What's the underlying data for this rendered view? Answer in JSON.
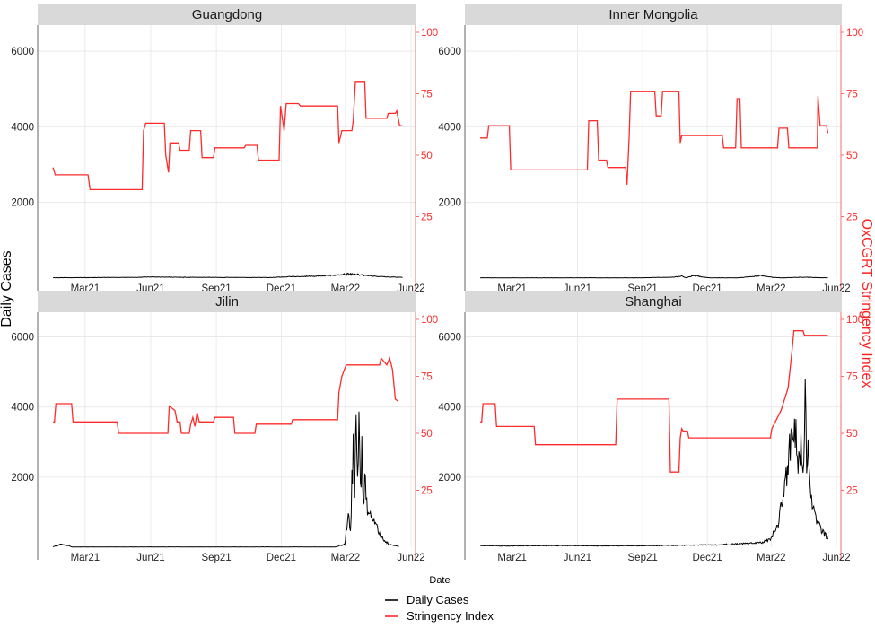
{
  "chart_data": {
    "type": "line",
    "ylabel_left": "Daily Cases",
    "ylabel_right": "OxCGRT Stringency Index",
    "xlabel": "Date",
    "x_ticks": [
      "Mar21",
      "Jun21",
      "Sep21",
      "Dec21",
      "Mar22",
      "Jun22"
    ],
    "x_tick_dates": [
      "2021-03-01",
      "2021-06-01",
      "2021-09-01",
      "2021-12-01",
      "2022-03-01",
      "2022-06-01"
    ],
    "xlim": [
      "2021-01-01",
      "2022-06-01"
    ],
    "y_left_ticks": [
      2000,
      4000,
      6000
    ],
    "y_left_lim": [
      0,
      6500
    ],
    "y_right_ticks": [
      25,
      50,
      75,
      100
    ],
    "y_right_lim": [
      0,
      100
    ],
    "grid": true,
    "legend": {
      "placement": "bottom",
      "entries": [
        {
          "label": "Daily Cases",
          "color": "#000000"
        },
        {
          "label": "Stringency Index",
          "color": "#ff2a2a"
        }
      ]
    },
    "colors": {
      "cases": "#000000",
      "stringency": "#ff2a2a",
      "strip": "#d9d9d9"
    },
    "panels": [
      {
        "title": "Guangdong",
        "stringency": [
          [
            "2021-01-15",
            45
          ],
          [
            "2021-01-18",
            42
          ],
          [
            "2021-03-05",
            42
          ],
          [
            "2021-03-08",
            36
          ],
          [
            "2021-05-20",
            36
          ],
          [
            "2021-05-22",
            60
          ],
          [
            "2021-05-25",
            63
          ],
          [
            "2021-06-20",
            63
          ],
          [
            "2021-06-22",
            50
          ],
          [
            "2021-06-26",
            43
          ],
          [
            "2021-06-28",
            55
          ],
          [
            "2021-07-10",
            55
          ],
          [
            "2021-07-12",
            52
          ],
          [
            "2021-07-25",
            52
          ],
          [
            "2021-07-27",
            60
          ],
          [
            "2021-08-10",
            60
          ],
          [
            "2021-08-12",
            49
          ],
          [
            "2021-08-28",
            49
          ],
          [
            "2021-08-30",
            53
          ],
          [
            "2021-10-10",
            53
          ],
          [
            "2021-10-12",
            54
          ],
          [
            "2021-10-28",
            54
          ],
          [
            "2021-10-30",
            48
          ],
          [
            "2021-11-28",
            48
          ],
          [
            "2021-11-30",
            70
          ],
          [
            "2021-12-05",
            60
          ],
          [
            "2021-12-08",
            71
          ],
          [
            "2021-12-10",
            71
          ],
          [
            "2021-12-25",
            71
          ],
          [
            "2021-12-28",
            70
          ],
          [
            "2022-02-18",
            70
          ],
          [
            "2022-02-20",
            55
          ],
          [
            "2022-02-24",
            60
          ],
          [
            "2022-03-10",
            60
          ],
          [
            "2022-03-12",
            64
          ],
          [
            "2022-03-15",
            80
          ],
          [
            "2022-03-28",
            80
          ],
          [
            "2022-03-30",
            65
          ],
          [
            "2022-04-28",
            65
          ],
          [
            "2022-04-30",
            67
          ],
          [
            "2022-05-10",
            67
          ],
          [
            "2022-05-12",
            68
          ],
          [
            "2022-05-16",
            62
          ],
          [
            "2022-05-20",
            62
          ]
        ],
        "cases": [
          [
            "2021-01-15",
            10
          ],
          [
            "2021-02-15",
            12
          ],
          [
            "2021-03-15",
            14
          ],
          [
            "2021-04-15",
            18
          ],
          [
            "2021-05-15",
            20
          ],
          [
            "2021-06-01",
            32
          ],
          [
            "2021-06-15",
            28
          ],
          [
            "2021-07-15",
            22
          ],
          [
            "2021-08-15",
            20
          ],
          [
            "2021-09-15",
            18
          ],
          [
            "2021-10-15",
            16
          ],
          [
            "2021-11-15",
            15
          ],
          [
            "2021-12-15",
            40
          ],
          [
            "2022-01-15",
            50
          ],
          [
            "2022-02-15",
            80
          ],
          [
            "2022-03-01",
            110
          ],
          [
            "2022-03-15",
            95
          ],
          [
            "2022-04-01",
            65
          ],
          [
            "2022-04-15",
            40
          ],
          [
            "2022-05-01",
            35
          ],
          [
            "2022-05-20",
            18
          ]
        ]
      },
      {
        "title": "Inner Mongolia",
        "stringency": [
          [
            "2021-01-15",
            57
          ],
          [
            "2021-01-25",
            57
          ],
          [
            "2021-01-27",
            62
          ],
          [
            "2021-02-25",
            62
          ],
          [
            "2021-02-27",
            44
          ],
          [
            "2021-06-15",
            44
          ],
          [
            "2021-06-17",
            64
          ],
          [
            "2021-06-29",
            64
          ],
          [
            "2021-07-01",
            48
          ],
          [
            "2021-07-12",
            48
          ],
          [
            "2021-07-14",
            45
          ],
          [
            "2021-08-08",
            45
          ],
          [
            "2021-08-10",
            38
          ],
          [
            "2021-08-13",
            58
          ],
          [
            "2021-08-15",
            76
          ],
          [
            "2021-09-18",
            76
          ],
          [
            "2021-09-20",
            66
          ],
          [
            "2021-09-27",
            66
          ],
          [
            "2021-09-29",
            76
          ],
          [
            "2021-10-22",
            76
          ],
          [
            "2021-10-24",
            55
          ],
          [
            "2021-10-26",
            58
          ],
          [
            "2021-12-22",
            58
          ],
          [
            "2021-12-24",
            53
          ],
          [
            "2022-01-10",
            53
          ],
          [
            "2022-01-12",
            73
          ],
          [
            "2022-01-16",
            73
          ],
          [
            "2022-01-18",
            53
          ],
          [
            "2022-02-08",
            53
          ],
          [
            "2022-02-10",
            53
          ],
          [
            "2022-03-10",
            53
          ],
          [
            "2022-03-12",
            61
          ],
          [
            "2022-03-24",
            61
          ],
          [
            "2022-03-26",
            53
          ],
          [
            "2022-05-05",
            53
          ],
          [
            "2022-05-06",
            74
          ],
          [
            "2022-05-09",
            62
          ],
          [
            "2022-05-18",
            62
          ],
          [
            "2022-05-20",
            59
          ]
        ],
        "cases": [
          [
            "2021-01-15",
            8
          ],
          [
            "2021-03-01",
            8
          ],
          [
            "2021-05-01",
            8
          ],
          [
            "2021-07-01",
            8
          ],
          [
            "2021-09-01",
            8
          ],
          [
            "2021-10-15",
            25
          ],
          [
            "2021-10-26",
            52
          ],
          [
            "2021-11-01",
            8
          ],
          [
            "2021-11-12",
            75
          ],
          [
            "2021-11-25",
            25
          ],
          [
            "2021-12-05",
            8
          ],
          [
            "2022-01-15",
            8
          ],
          [
            "2022-02-15",
            65
          ],
          [
            "2022-03-01",
            25
          ],
          [
            "2022-03-15",
            8
          ],
          [
            "2022-04-20",
            25
          ],
          [
            "2022-05-01",
            14
          ],
          [
            "2022-05-20",
            8
          ]
        ]
      },
      {
        "title": "Jilin",
        "stringency": [
          [
            "2021-01-15",
            55
          ],
          [
            "2021-01-17",
            55
          ],
          [
            "2021-01-19",
            63
          ],
          [
            "2021-02-10",
            63
          ],
          [
            "2021-02-12",
            55
          ],
          [
            "2021-04-15",
            55
          ],
          [
            "2021-04-17",
            50
          ],
          [
            "2021-06-25",
            50
          ],
          [
            "2021-06-27",
            62
          ],
          [
            "2021-07-05",
            60
          ],
          [
            "2021-07-08",
            55
          ],
          [
            "2021-07-12",
            55
          ],
          [
            "2021-07-14",
            50
          ],
          [
            "2021-07-25",
            50
          ],
          [
            "2021-07-27",
            54
          ],
          [
            "2021-07-30",
            57
          ],
          [
            "2021-08-02",
            53
          ],
          [
            "2021-08-05",
            59
          ],
          [
            "2021-08-08",
            55
          ],
          [
            "2021-08-28",
            55
          ],
          [
            "2021-08-30",
            57
          ],
          [
            "2021-09-25",
            57
          ],
          [
            "2021-09-27",
            50
          ],
          [
            "2021-10-25",
            50
          ],
          [
            "2021-10-27",
            54
          ],
          [
            "2021-12-15",
            54
          ],
          [
            "2021-12-17",
            56
          ],
          [
            "2022-02-18",
            56
          ],
          [
            "2022-02-20",
            68
          ],
          [
            "2022-02-24",
            75
          ],
          [
            "2022-03-02",
            80
          ],
          [
            "2022-04-18",
            80
          ],
          [
            "2022-04-20",
            83
          ],
          [
            "2022-04-28",
            80
          ],
          [
            "2022-05-02",
            83
          ],
          [
            "2022-05-06",
            78
          ],
          [
            "2022-05-10",
            65
          ],
          [
            "2022-05-14",
            64
          ]
        ],
        "cases": [
          [
            "2021-01-15",
            8
          ],
          [
            "2021-01-25",
            85
          ],
          [
            "2021-02-05",
            50
          ],
          [
            "2021-02-10",
            8
          ],
          [
            "2021-06-01",
            8
          ],
          [
            "2021-09-01",
            8
          ],
          [
            "2021-12-01",
            8
          ],
          [
            "2022-02-15",
            8
          ],
          [
            "2022-02-28",
            80
          ],
          [
            "2022-03-05",
            900
          ],
          [
            "2022-03-08",
            400
          ],
          [
            "2022-03-10",
            1800
          ],
          [
            "2022-03-12",
            2800
          ],
          [
            "2022-03-14",
            1500
          ],
          [
            "2022-03-16",
            3900
          ],
          [
            "2022-03-18",
            2100
          ],
          [
            "2022-03-20",
            3300
          ],
          [
            "2022-03-22",
            1600
          ],
          [
            "2022-03-24",
            2700
          ],
          [
            "2022-03-26",
            1300
          ],
          [
            "2022-03-28",
            1900
          ],
          [
            "2022-04-01",
            1100
          ],
          [
            "2022-04-10",
            700
          ],
          [
            "2022-04-20",
            300
          ],
          [
            "2022-05-01",
            80
          ],
          [
            "2022-05-15",
            20
          ]
        ]
      },
      {
        "title": "Shanghai",
        "stringency": [
          [
            "2021-01-15",
            55
          ],
          [
            "2021-01-17",
            55
          ],
          [
            "2021-01-19",
            63
          ],
          [
            "2021-02-05",
            63
          ],
          [
            "2021-02-07",
            53
          ],
          [
            "2021-04-01",
            53
          ],
          [
            "2021-04-03",
            45
          ],
          [
            "2021-07-25",
            45
          ],
          [
            "2021-07-27",
            65
          ],
          [
            "2021-10-08",
            65
          ],
          [
            "2021-10-10",
            33
          ],
          [
            "2021-10-22",
            33
          ],
          [
            "2021-10-24",
            48
          ],
          [
            "2021-10-26",
            52
          ],
          [
            "2021-10-28",
            51
          ],
          [
            "2021-11-03",
            51
          ],
          [
            "2021-11-05",
            48
          ],
          [
            "2022-02-28",
            48
          ],
          [
            "2022-03-02",
            52
          ],
          [
            "2022-03-15",
            60
          ],
          [
            "2022-03-25",
            70
          ],
          [
            "2022-03-30",
            85
          ],
          [
            "2022-04-02",
            95
          ],
          [
            "2022-04-15",
            95
          ],
          [
            "2022-04-17",
            93
          ],
          [
            "2022-05-20",
            93
          ]
        ],
        "cases": [
          [
            "2021-01-15",
            45
          ],
          [
            "2021-03-01",
            40
          ],
          [
            "2021-05-01",
            45
          ],
          [
            "2021-07-01",
            40
          ],
          [
            "2021-09-01",
            42
          ],
          [
            "2021-11-01",
            55
          ],
          [
            "2021-12-15",
            70
          ],
          [
            "2022-01-15",
            95
          ],
          [
            "2022-02-15",
            130
          ],
          [
            "2022-03-01",
            250
          ],
          [
            "2022-03-10",
            600
          ],
          [
            "2022-03-20",
            1600
          ],
          [
            "2022-03-28",
            2800
          ],
          [
            "2022-04-05",
            3400
          ],
          [
            "2022-04-08",
            2400
          ],
          [
            "2022-04-12",
            3000
          ],
          [
            "2022-04-15",
            2000
          ],
          [
            "2022-04-18",
            4000
          ],
          [
            "2022-04-20",
            2500
          ],
          [
            "2022-04-22",
            3500
          ],
          [
            "2022-04-25",
            1800
          ],
          [
            "2022-05-01",
            900
          ],
          [
            "2022-05-10",
            500
          ],
          [
            "2022-05-20",
            250
          ]
        ]
      }
    ]
  }
}
